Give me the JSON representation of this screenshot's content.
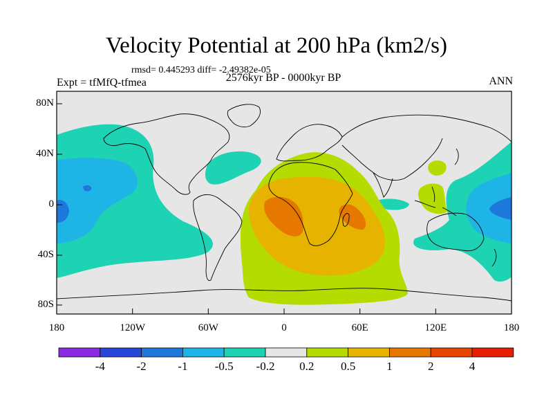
{
  "map": {
    "title": "Velocity Potential at 200 hPa (km2/s)",
    "stats": "rmsd= 0.445293 diff= -2.49382e-05",
    "experiment": "Expt = tfMfQ-tfmea",
    "period": "2576kyr BP - 0000kyr BP",
    "season": "ANN",
    "lat_labels": [
      "80N",
      "40N",
      "0",
      "40S",
      "80S"
    ],
    "lon_labels": [
      "180",
      "120W",
      "60W",
      "0",
      "60E",
      "120E",
      "180"
    ]
  },
  "colorbar": {
    "labels": [
      "-4",
      "-2",
      "-1",
      "-0.5",
      "-0.2",
      "0.2",
      "0.5",
      "1",
      "2",
      "4"
    ],
    "colors": [
      "#8a2be2",
      "#2a46d8",
      "#1e78dc",
      "#1eb4e6",
      "#1ed2b4",
      "#e6e6e6",
      "#b4dc00",
      "#e6b400",
      "#e67800",
      "#e64600",
      "#e61e00"
    ]
  }
}
